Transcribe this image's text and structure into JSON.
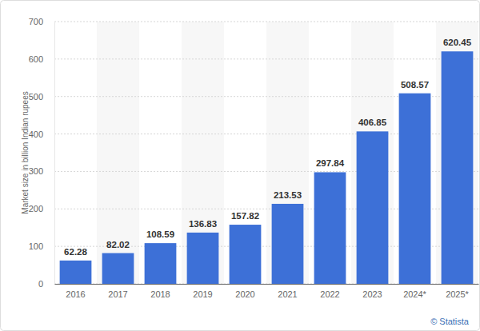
{
  "chart_data": {
    "type": "bar",
    "y_label": "Market size in billion Indian rupees",
    "categories": [
      "2016",
      "2017",
      "2018",
      "2019",
      "2020",
      "2021",
      "2022",
      "2023",
      "2024*",
      "2025*"
    ],
    "values": [
      62.28,
      82.02,
      108.59,
      136.83,
      157.82,
      213.53,
      297.84,
      406.85,
      508.57,
      620.45
    ],
    "color": "#3d70d7",
    "ylim": [
      0,
      700
    ],
    "yticks": [
      0,
      100,
      200,
      300,
      400,
      500,
      600,
      700
    ],
    "grid": true,
    "data_labels": true,
    "annotations": [
      "© Statista"
    ]
  }
}
